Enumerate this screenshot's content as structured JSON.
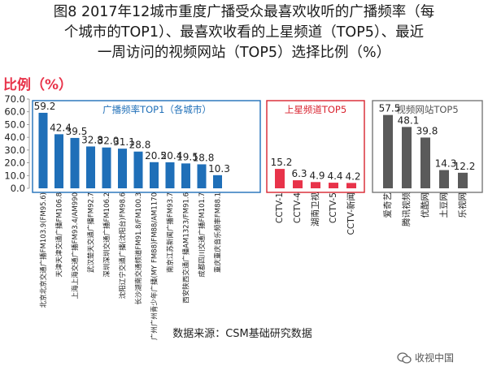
{
  "title_lines": [
    "图8 2017年12城市重度广播受众最喜欢收听的广播频率（每",
    "个城市的TOP1）、最喜欢收看的上星频道（TOP5）、最近",
    "一周访问的视频网站（TOP5）选择比例（%）"
  ],
  "source": "数据来源：CSM基础研究数据",
  "watermark": "收视中国",
  "colors": {
    "blue": "#1f6fb8",
    "red": "#e8334a",
    "gray": "#5a5a5a",
    "unit_label": "#e8334a",
    "box_blue": "#1f6fb8",
    "box_red": "#d9232f",
    "box_gray": "#777777"
  },
  "chart_data": {
    "type": "bar",
    "ylabel": "比例（%）",
    "ylim": [
      0,
      70
    ],
    "yticks": [
      "0.0",
      "10.0",
      "20.0",
      "30.0",
      "40.0",
      "50.0",
      "60.0",
      "70.0"
    ],
    "groups": [
      {
        "name": "广播频率TOP1（各城市）",
        "color": "blue",
        "categories": [
          "北京北京交通广播FM103.9(FM95.6)",
          "天津天津交通广播FM106.8",
          "上海上海交通广播FM93.4/AM990",
          "武汉楚天交通广播FM92.7",
          "深圳深圳交通广播FM106.2",
          "沈阳辽宁交通广播(沈阳台)FM98.6",
          "长沙湖南交通频道FM91.8/FM100.3",
          "广州广州青少年广播(MY FM88)FM88/AM1170",
          "南京江苏新闻广播FM93.7",
          "西安陕西交通广播AM1323/FM91.6",
          "成都四川交通广播FM101.7",
          "重庆重庆音乐频率FM88.1"
        ],
        "values": [
          59.2,
          42.4,
          39.5,
          32.8,
          32.0,
          31.1,
          28.8,
          20.5,
          20.4,
          19.5,
          18.8,
          10.3
        ]
      },
      {
        "name": "上星频道TOP5",
        "color": "red",
        "categories": [
          "CCTV-1",
          "CCTV-4",
          "湖南卫视",
          "CCTV-5",
          "CCTV-新闻"
        ],
        "values": [
          15.2,
          6.3,
          4.9,
          4.4,
          4.2
        ]
      },
      {
        "name": "视频网站TOP5",
        "color": "gray",
        "categories": [
          "爱奇艺",
          "腾讯视频",
          "优酷网",
          "土豆网",
          "乐视网"
        ],
        "values": [
          57.5,
          48.1,
          39.8,
          14.3,
          12.2
        ]
      }
    ]
  }
}
